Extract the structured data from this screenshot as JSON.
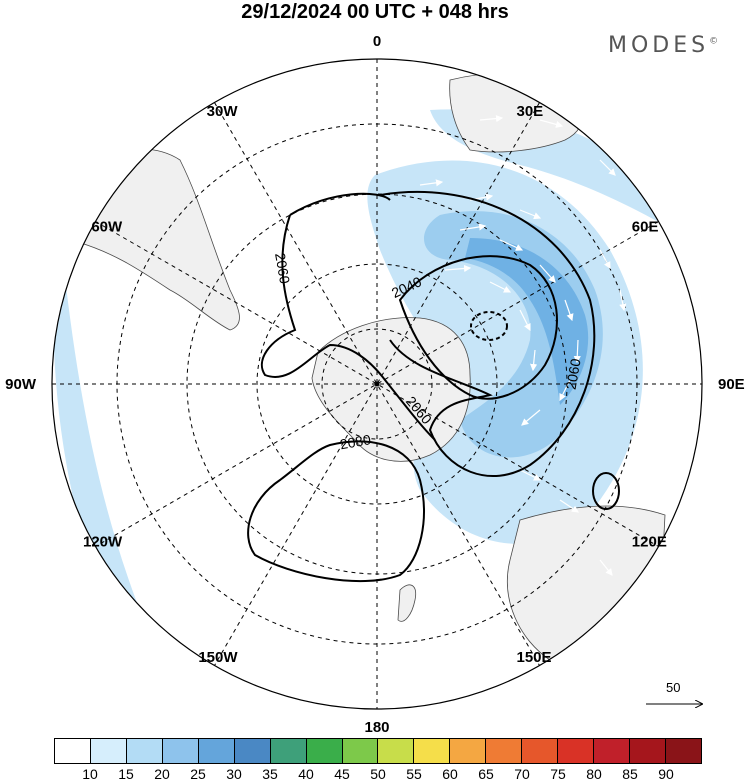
{
  "title": "29/12/2024  00 UTC  + 048 hrs",
  "logo": "MODES",
  "logo_mark": "©",
  "meridian_labels": [
    {
      "text": "0",
      "lon": 0
    },
    {
      "text": "30E",
      "lon": 30
    },
    {
      "text": "60E",
      "lon": 60
    },
    {
      "text": "90E",
      "lon": 90
    },
    {
      "text": "120E",
      "lon": 120
    },
    {
      "text": "150E",
      "lon": 150
    },
    {
      "text": "180",
      "lon": 180
    },
    {
      "text": "150W",
      "lon": -150
    },
    {
      "text": "120W",
      "lon": -120
    },
    {
      "text": "90W",
      "lon": -90
    },
    {
      "text": "60W",
      "lon": -60
    },
    {
      "text": "30W",
      "lon": -30
    }
  ],
  "contour_labels": [
    "2040",
    "2060",
    "2060",
    "2060",
    "2080"
  ],
  "reference_vector": {
    "value": "50"
  },
  "colorbar": {
    "ticks": [
      "10",
      "15",
      "20",
      "25",
      "30",
      "35",
      "40",
      "45",
      "50",
      "55",
      "60",
      "65",
      "70",
      "75",
      "80",
      "85",
      "90"
    ],
    "colors": [
      "#ffffff",
      "#d6eefc",
      "#b3dcf5",
      "#8ec3ec",
      "#64a5db",
      "#4a88c4",
      "#3ea07a",
      "#3aae4a",
      "#7dc94a",
      "#c8dd4a",
      "#f5de4a",
      "#f4a742",
      "#ef7b34",
      "#e6572b",
      "#d93226",
      "#c0202a",
      "#a5161c",
      "#8a1418"
    ]
  },
  "colors": {
    "land": "#f0f0f0",
    "coast": "#4a4a4a",
    "wind_light": "#c7e5f8",
    "wind_mid": "#9ccdef",
    "wind_strong": "#6fb1e4"
  }
}
